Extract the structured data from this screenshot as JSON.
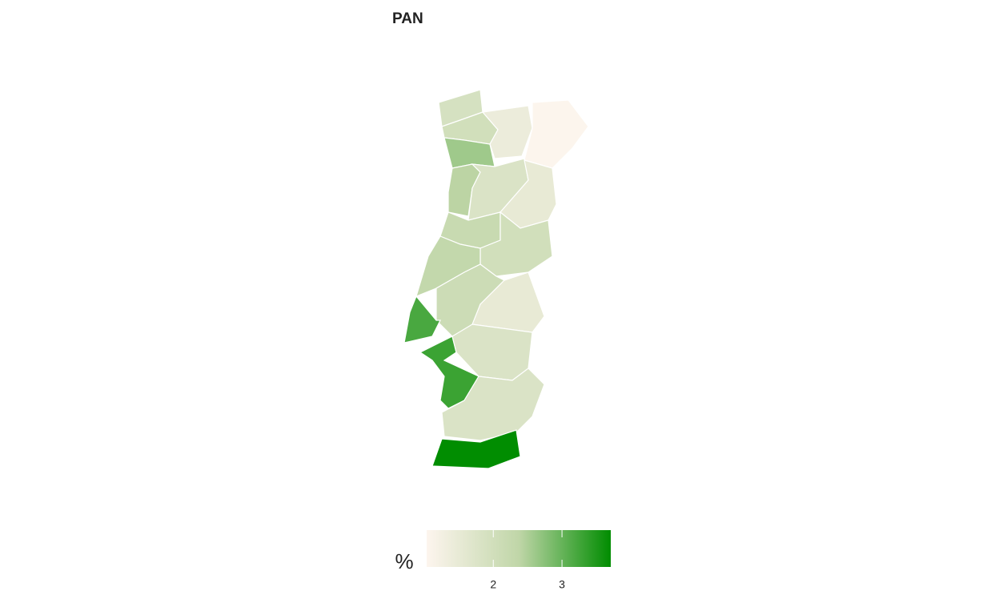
{
  "chart_data": {
    "type": "choropleth",
    "title": "PAN",
    "legend_title": "%",
    "colorbar": {
      "lim": [
        1.03,
        3.71
      ],
      "ticks": [
        2,
        3
      ],
      "colors": [
        "#fdf5ee",
        "#c0d6a8",
        "#008c00"
      ]
    },
    "regions": {
      "values": [
        1.9,
        2.0,
        2.6,
        1.4,
        1.05,
        2.4,
        1.8,
        1.5,
        2.2,
        2.0,
        2.3,
        2.1,
        1.5,
        3.2,
        3.3,
        1.8,
        1.8,
        3.7
      ]
    }
  }
}
